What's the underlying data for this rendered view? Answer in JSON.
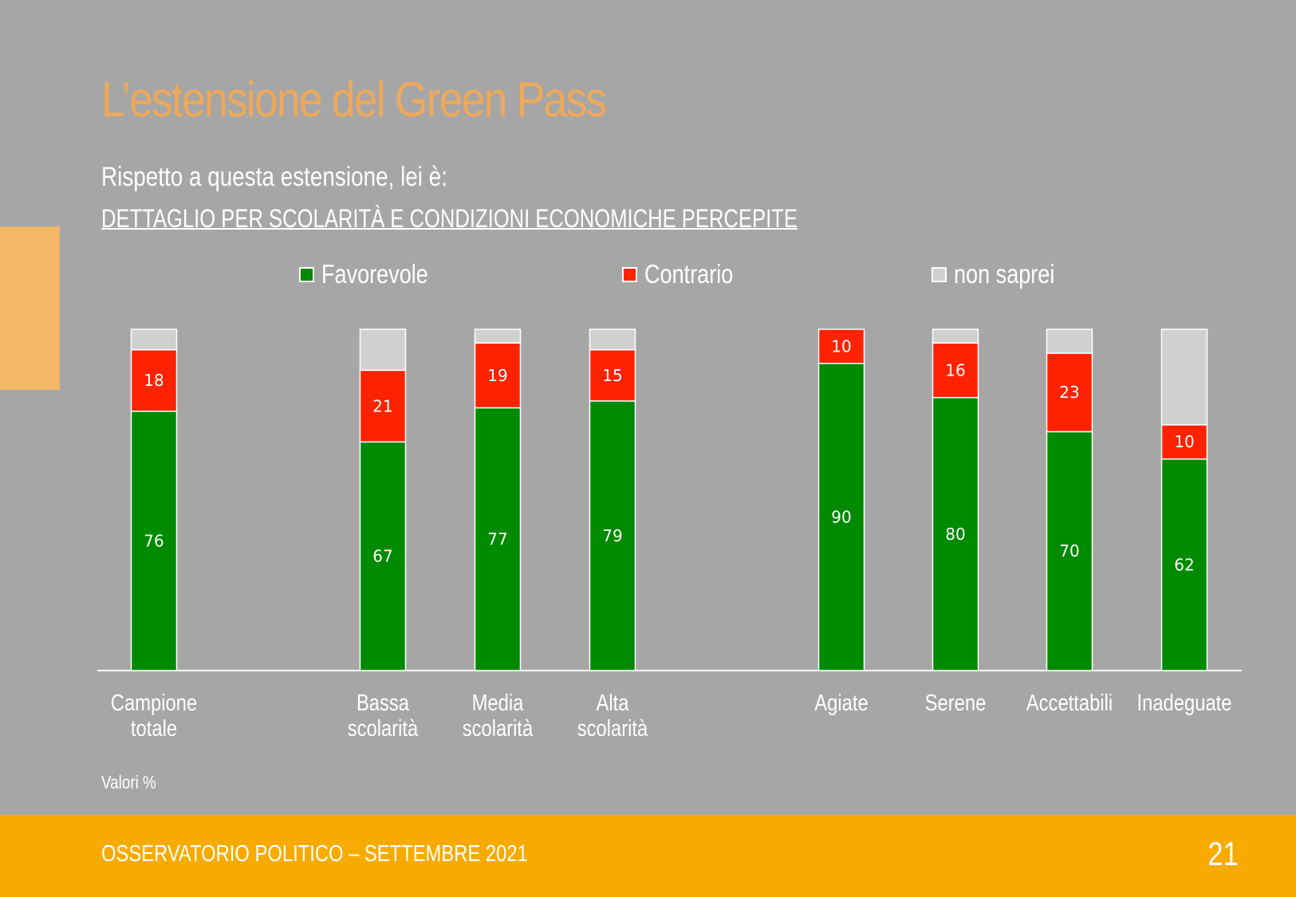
{
  "title": "L’estensione del Green Pass",
  "question": "Rispetto a questa estensione, lei è:",
  "detail": "DETTAGLIO PER SCOLARITÀ E CONDIZIONI ECONOMICHE PERCEPITE",
  "legend": [
    {
      "label": "Favorevole",
      "color": "#008a00"
    },
    {
      "label": "Contrario",
      "color": "#ff2200"
    },
    {
      "label": "non saprei",
      "color": "#d0d0d0"
    }
  ],
  "chart_data": {
    "type": "bar",
    "stacked": true,
    "ylim": [
      0,
      100
    ],
    "categories": [
      "Campione\ntotale",
      "Bassa\nscolarità",
      "Media\nscolarità",
      "Alta\nscolarità",
      "Agiate",
      "Serene",
      "Accettabili",
      "Inadeguate"
    ],
    "series": [
      {
        "name": "Favorevole",
        "color": "#008a00",
        "values": [
          76,
          67,
          77,
          79,
          90,
          80,
          70,
          62
        ]
      },
      {
        "name": "Contrario",
        "color": "#ff2200",
        "values": [
          18,
          21,
          19,
          15,
          10,
          16,
          23,
          10
        ]
      },
      {
        "name": "non saprei",
        "color": "#d0d0d0",
        "values": [
          6,
          12,
          4,
          6,
          0,
          4,
          7,
          28
        ]
      }
    ],
    "show_value_labels": [
      "Favorevole",
      "Contrario"
    ],
    "grid": false,
    "legend_position": "top"
  },
  "note": "Valori %",
  "footer": {
    "text": "OSSERVATORIO POLITICO – SETTEMBRE 2021",
    "page": "21"
  }
}
